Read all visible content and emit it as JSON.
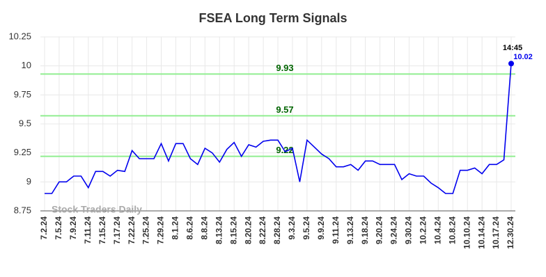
{
  "chart_data": {
    "type": "line",
    "title": "FSEA Long Term Signals",
    "categories": [
      "7.2.24",
      null,
      "7.5.24",
      null,
      "7.9.24",
      null,
      "7.11.24",
      null,
      "7.15.24",
      null,
      "7.17.24",
      null,
      "7.22.24",
      null,
      "7.25.24",
      null,
      "7.29.24",
      null,
      "8.1.24",
      null,
      "8.6.24",
      null,
      "8.8.24",
      null,
      "8.13.24",
      null,
      "8.15.24",
      null,
      "8.20.24",
      null,
      "8.22.24",
      null,
      "8.28.24",
      null,
      "9.3.24",
      null,
      "9.5.24",
      null,
      "9.9.24",
      null,
      "9.11.24",
      null,
      "9.13.24",
      null,
      "9.18.24",
      null,
      "9.20.24",
      null,
      "9.24.24",
      null,
      "9.30.24",
      null,
      "10.2.24",
      null,
      "10.4.24",
      null,
      "10.8.24",
      null,
      "10.10.24",
      null,
      "10.14.24",
      null,
      "10.17.24",
      null,
      "12.30.24"
    ],
    "values": [
      8.9,
      8.9,
      9.0,
      9.0,
      9.05,
      9.05,
      8.95,
      9.09,
      9.09,
      9.05,
      9.1,
      9.09,
      9.27,
      9.2,
      9.2,
      9.2,
      9.33,
      9.18,
      9.33,
      9.33,
      9.2,
      9.15,
      9.29,
      9.25,
      9.17,
      9.28,
      9.34,
      9.22,
      9.32,
      9.3,
      9.35,
      9.36,
      9.36,
      9.26,
      9.29,
      9.0,
      9.36,
      9.3,
      9.24,
      9.2,
      9.13,
      9.13,
      9.15,
      9.1,
      9.18,
      9.18,
      9.15,
      9.15,
      9.15,
      9.02,
      9.07,
      9.05,
      9.05,
      8.99,
      8.95,
      8.9,
      8.9,
      9.1,
      9.1,
      9.12,
      9.07,
      9.15,
      9.15,
      9.19,
      10.02
    ],
    "color": "#0000ee",
    "reference_lines": [
      9.93,
      9.57,
      9.22
    ],
    "reference_color": "#90ee90",
    "reference_label_color": "#006400",
    "annotation": "14:45",
    "watermark": "Stock Traders Daily",
    "ylim": [
      8.75,
      10.25
    ],
    "yticks": [
      10.25,
      10,
      9.75,
      9.5,
      9.25,
      9,
      8.75
    ],
    "grid": true
  }
}
